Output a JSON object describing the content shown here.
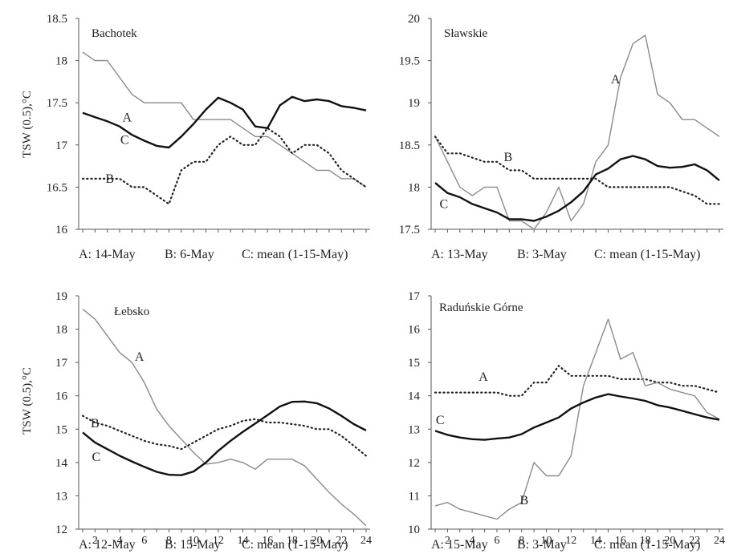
{
  "figure": {
    "ylabel": "TSW (0.5),°C"
  },
  "chart_data": [
    {
      "type": "line",
      "title": "Bachotek",
      "caption": {
        "a": "A: 14-May",
        "b": "B: 6-May",
        "c": "C: mean (1-15-May)"
      },
      "xlim": [
        1,
        24
      ],
      "x_ticks": [],
      "ylim": [
        16,
        18.5
      ],
      "y_ticks": [
        "16",
        "16.5",
        "17",
        "17.5",
        "18",
        "18.5"
      ],
      "x": [
        1,
        2,
        3,
        4,
        5,
        6,
        7,
        8,
        9,
        10,
        11,
        12,
        13,
        14,
        15,
        16,
        17,
        18,
        19,
        20,
        21,
        22,
        23,
        24
      ],
      "series": [
        {
          "name": "A",
          "style": "thin",
          "label_at": [
            4.6,
            17.28
          ],
          "values": [
            18.1,
            18.0,
            18.0,
            17.8,
            17.6,
            17.5,
            17.5,
            17.5,
            17.5,
            17.3,
            17.3,
            17.3,
            17.3,
            17.2,
            17.1,
            17.1,
            17.0,
            16.9,
            16.8,
            16.7,
            16.7,
            16.6,
            16.6,
            16.5
          ]
        },
        {
          "name": "B",
          "style": "dotted",
          "label_at": [
            3.2,
            16.55
          ],
          "values": [
            16.6,
            16.6,
            16.6,
            16.6,
            16.5,
            16.5,
            16.4,
            16.3,
            16.7,
            16.8,
            16.8,
            17.0,
            17.1,
            17.0,
            17.0,
            17.2,
            17.1,
            16.9,
            17.0,
            17.0,
            16.9,
            16.7,
            16.6,
            16.5
          ]
        },
        {
          "name": "C",
          "style": "thick",
          "label_at": [
            4.4,
            17.01
          ],
          "values": [
            17.38,
            17.33,
            17.28,
            17.22,
            17.12,
            17.05,
            16.99,
            16.97,
            17.1,
            17.25,
            17.42,
            17.56,
            17.5,
            17.42,
            17.22,
            17.2,
            17.47,
            17.57,
            17.52,
            17.54,
            17.52,
            17.46,
            17.44,
            17.41
          ]
        }
      ]
    },
    {
      "type": "line",
      "title": "Sławskie",
      "caption": {
        "a": "A: 13-May",
        "b": "B: 3-May",
        "c": "C: mean (1-15-May)"
      },
      "xlim": [
        1,
        24
      ],
      "x_ticks": [],
      "ylim": [
        17.5,
        20
      ],
      "y_ticks": [
        "17.5",
        "18",
        "18.5",
        "19",
        "19.5",
        "20"
      ],
      "x": [
        1,
        2,
        3,
        4,
        5,
        6,
        7,
        8,
        9,
        10,
        11,
        12,
        13,
        14,
        15,
        16,
        17,
        18,
        19,
        20,
        21,
        22,
        23,
        24
      ],
      "series": [
        {
          "name": "A",
          "style": "thin",
          "label_at": [
            15.6,
            19.23
          ],
          "values": [
            18.6,
            18.3,
            18.0,
            17.9,
            18.0,
            18.0,
            17.6,
            17.6,
            17.5,
            17.7,
            18.0,
            17.6,
            17.8,
            18.3,
            18.5,
            19.3,
            19.7,
            19.8,
            19.1,
            19.0,
            18.8,
            18.8,
            18.7,
            18.6
          ]
        },
        {
          "name": "B",
          "style": "dotted",
          "label_at": [
            6.9,
            18.31
          ],
          "values": [
            18.6,
            18.4,
            18.4,
            18.35,
            18.3,
            18.3,
            18.2,
            18.2,
            18.1,
            18.1,
            18.1,
            18.1,
            18.1,
            18.1,
            18.0,
            18.0,
            18.0,
            18.0,
            18.0,
            18.0,
            17.95,
            17.9,
            17.8,
            17.8
          ]
        },
        {
          "name": "C",
          "style": "thick",
          "label_at": [
            1.7,
            17.75
          ],
          "values": [
            18.05,
            17.93,
            17.88,
            17.8,
            17.75,
            17.7,
            17.62,
            17.62,
            17.6,
            17.65,
            17.72,
            17.82,
            17.95,
            18.15,
            18.22,
            18.33,
            18.37,
            18.33,
            18.25,
            18.23,
            18.24,
            18.27,
            18.2,
            18.08
          ]
        }
      ]
    },
    {
      "type": "line",
      "title": "Łebsko",
      "caption": {
        "a": "A: 12-May",
        "b": "B: 15-May",
        "c": "C: mean (1-15-May)"
      },
      "xlim": [
        1,
        24
      ],
      "x_ticks": [
        "2",
        "4",
        "6",
        "8",
        "10",
        "12",
        "14",
        "16",
        "18",
        "20",
        "22",
        "24"
      ],
      "ylim": [
        12,
        19
      ],
      "y_ticks": [
        "12",
        "13",
        "14",
        "15",
        "16",
        "17",
        "18",
        "19"
      ],
      "x": [
        1,
        2,
        3,
        4,
        5,
        6,
        7,
        8,
        9,
        10,
        11,
        12,
        13,
        14,
        15,
        16,
        17,
        18,
        19,
        20,
        21,
        22,
        23,
        24
      ],
      "series": [
        {
          "name": "A",
          "style": "thin",
          "label_at": [
            5.6,
            17.05
          ],
          "values": [
            18.6,
            18.3,
            17.8,
            17.3,
            17.0,
            16.4,
            15.6,
            15.1,
            14.7,
            14.3,
            13.95,
            14.0,
            14.1,
            14.0,
            13.8,
            14.1,
            14.1,
            14.1,
            13.9,
            13.5,
            13.1,
            12.75,
            12.45,
            12.1
          ]
        },
        {
          "name": "B",
          "style": "dotted",
          "label_at": [
            2.0,
            15.05
          ],
          "values": [
            15.4,
            15.2,
            15.1,
            14.95,
            14.8,
            14.65,
            14.55,
            14.5,
            14.4,
            14.6,
            14.8,
            15.0,
            15.1,
            15.25,
            15.3,
            15.2,
            15.2,
            15.15,
            15.1,
            15.0,
            15.0,
            14.8,
            14.5,
            14.2
          ]
        },
        {
          "name": "C",
          "style": "thick",
          "label_at": [
            2.1,
            14.05
          ],
          "values": [
            14.9,
            14.6,
            14.4,
            14.2,
            14.03,
            13.87,
            13.72,
            13.63,
            13.62,
            13.73,
            14.0,
            14.35,
            14.65,
            14.92,
            15.17,
            15.42,
            15.68,
            15.82,
            15.83,
            15.78,
            15.62,
            15.4,
            15.15,
            14.96
          ]
        }
      ]
    },
    {
      "type": "line",
      "title": "Raduńskie Górne",
      "caption": {
        "a": "A: 15-May",
        "b": "B: 3-May",
        "c": "C: mean (1-15-May)"
      },
      "xlim": [
        1,
        24
      ],
      "x_ticks": [
        "2",
        "4",
        "6",
        "8",
        "10",
        "12",
        "14",
        "16",
        "18",
        "20",
        "22",
        "24"
      ],
      "ylim": [
        10,
        17
      ],
      "y_ticks": [
        "10",
        "11",
        "12",
        "13",
        "14",
        "15",
        "16",
        "17"
      ],
      "x": [
        1,
        2,
        3,
        4,
        5,
        6,
        7,
        8,
        9,
        10,
        11,
        12,
        13,
        14,
        15,
        16,
        17,
        18,
        19,
        20,
        21,
        22,
        23,
        24
      ],
      "series": [
        {
          "name": "A",
          "style": "dotted",
          "label_at": [
            4.9,
            14.45
          ],
          "values": [
            14.1,
            14.1,
            14.1,
            14.1,
            14.1,
            14.1,
            14.0,
            14.0,
            14.4,
            14.4,
            14.9,
            14.6,
            14.6,
            14.6,
            14.6,
            14.5,
            14.5,
            14.5,
            14.4,
            14.4,
            14.3,
            14.3,
            14.2,
            14.1
          ]
        },
        {
          "name": "B",
          "style": "thin",
          "label_at": [
            8.2,
            10.75
          ],
          "values": [
            10.7,
            10.8,
            10.6,
            10.5,
            10.4,
            10.3,
            10.6,
            10.8,
            12.0,
            11.6,
            11.6,
            12.2,
            14.3,
            15.3,
            16.3,
            15.1,
            15.3,
            14.3,
            14.4,
            14.2,
            14.1,
            14.0,
            13.5,
            13.3
          ]
        },
        {
          "name": "C",
          "style": "thick",
          "label_at": [
            1.4,
            13.15
          ],
          "values": [
            12.95,
            12.83,
            12.75,
            12.7,
            12.68,
            12.72,
            12.75,
            12.85,
            13.05,
            13.2,
            13.35,
            13.62,
            13.8,
            13.95,
            14.05,
            13.98,
            13.92,
            13.85,
            13.72,
            13.65,
            13.55,
            13.45,
            13.35,
            13.28
          ]
        }
      ]
    }
  ]
}
